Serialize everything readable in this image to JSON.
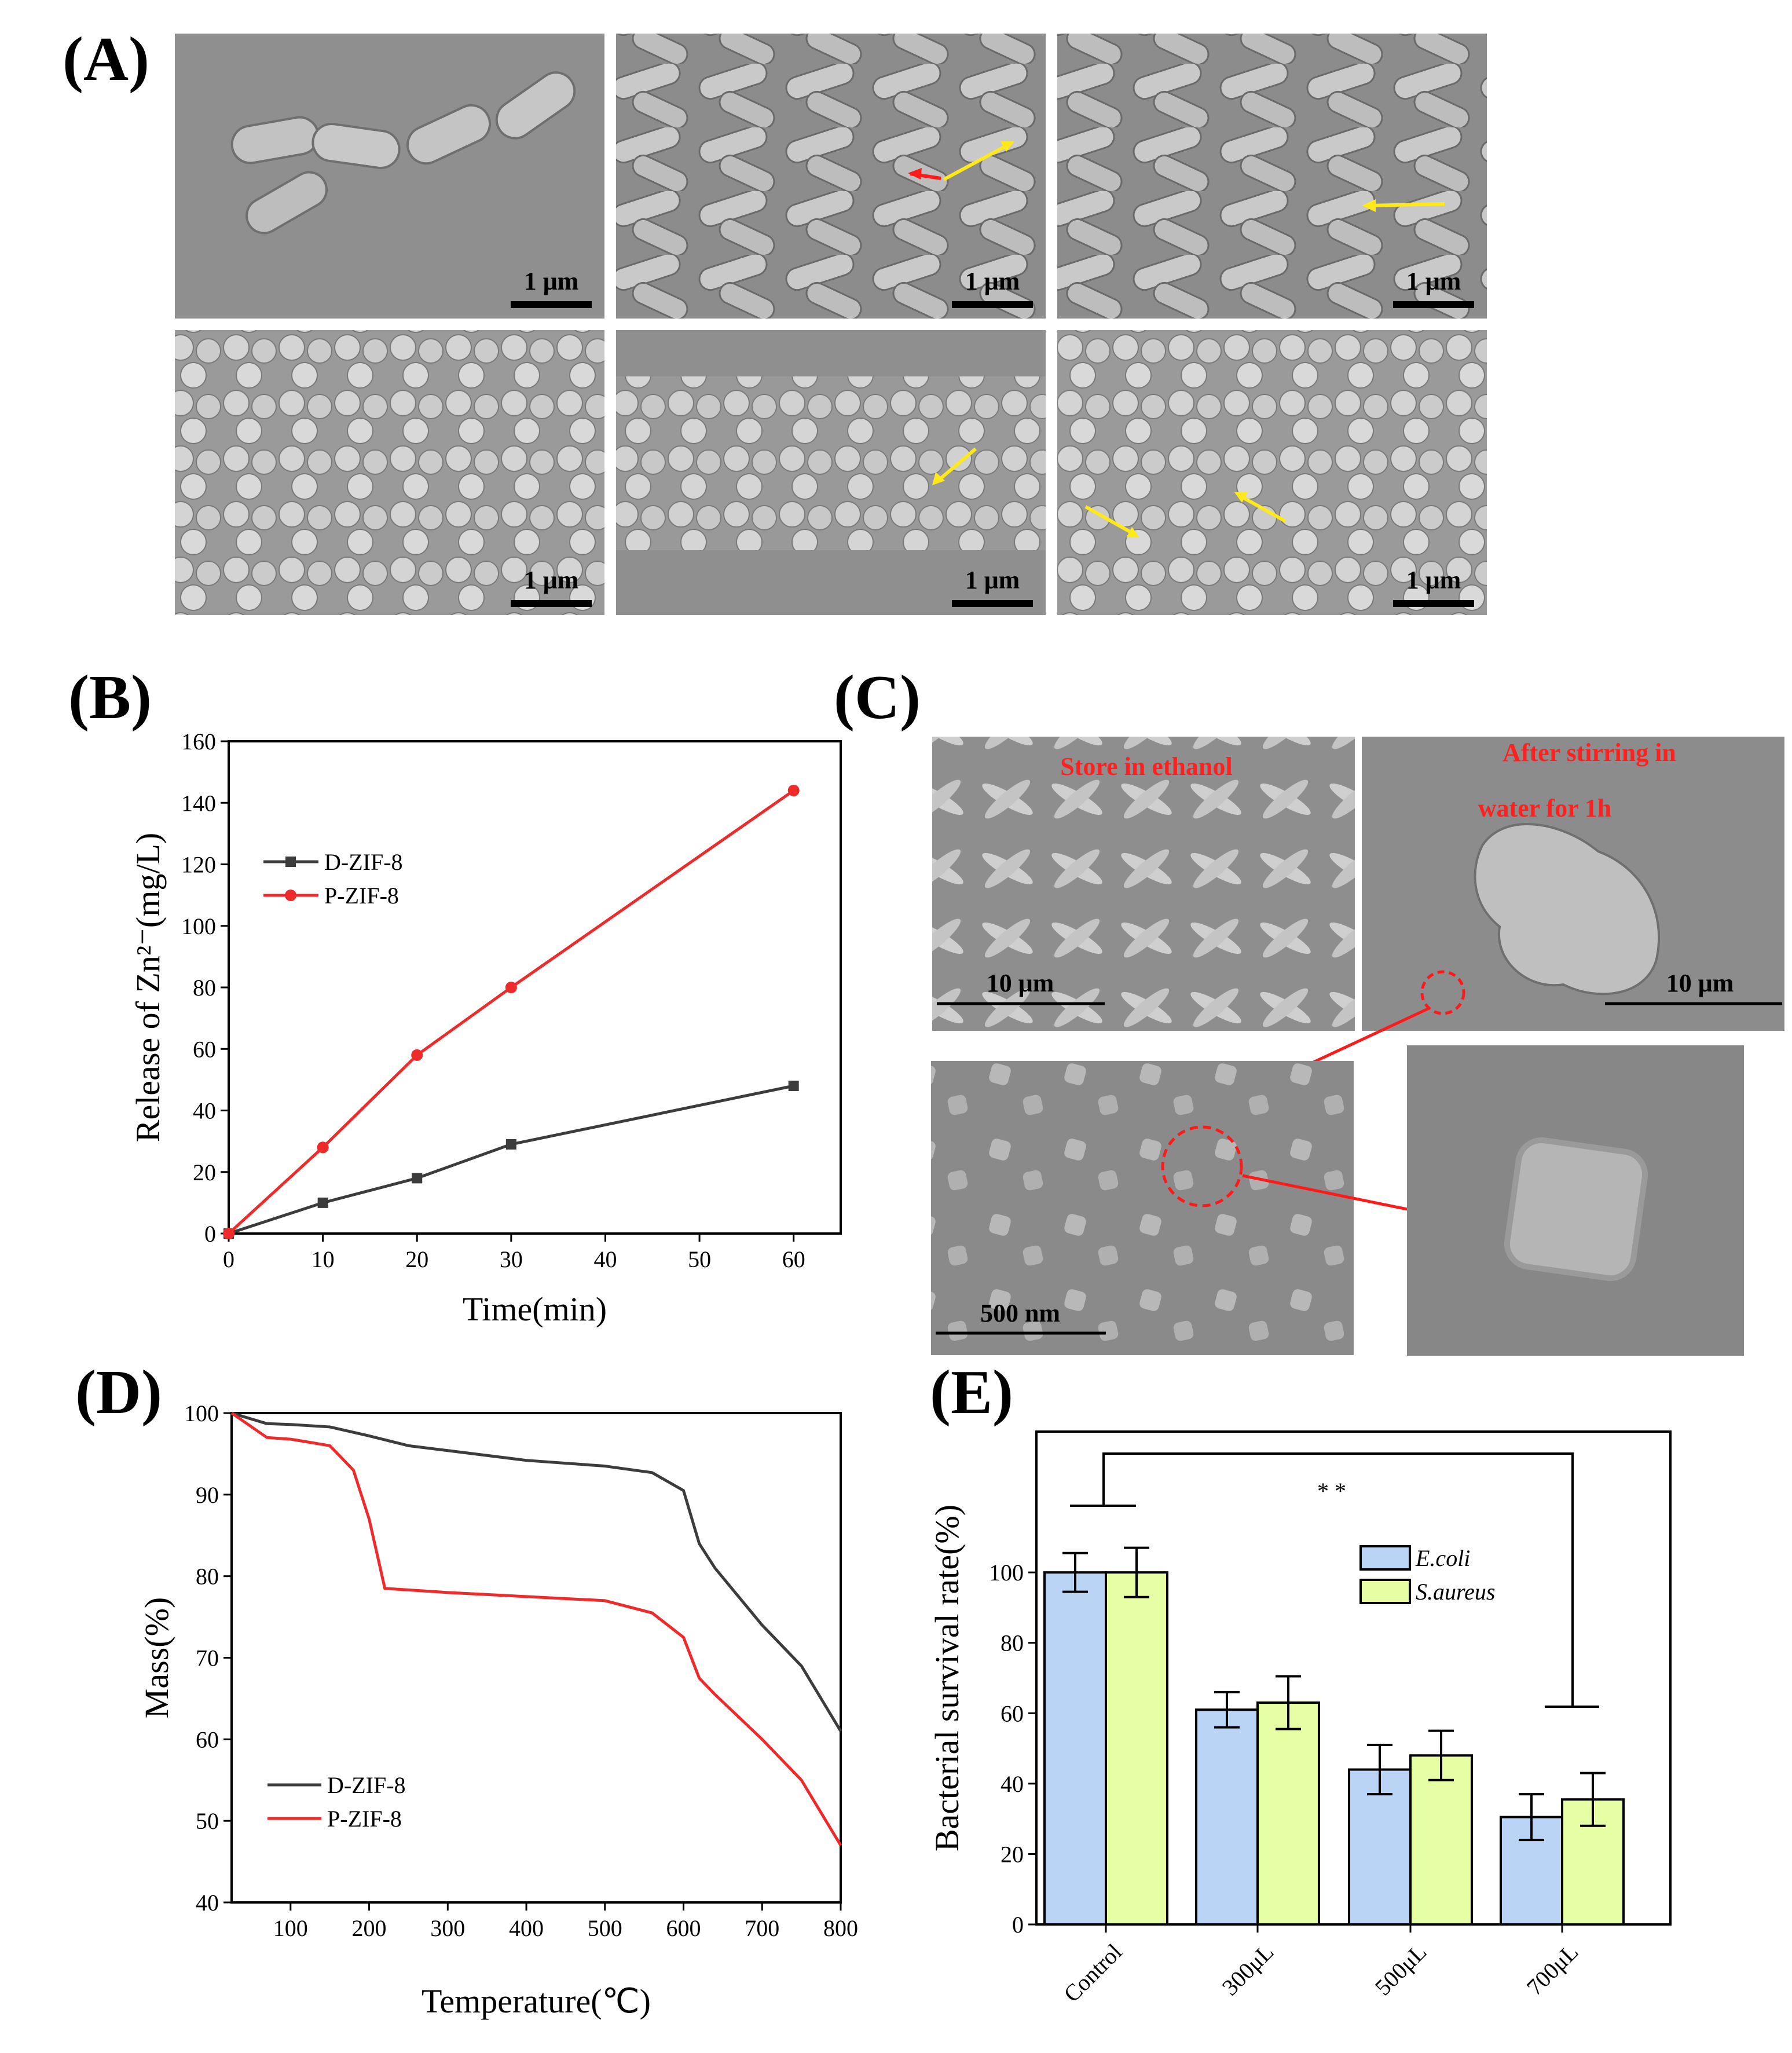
{
  "panel_labels": {
    "a": "(A)",
    "b": "(B)",
    "c": "(C)",
    "d": "(D)",
    "e": "(E)"
  },
  "sem_a": {
    "scale_labels": [
      "1 μm",
      "1 μm",
      "1 μm",
      "1 μm",
      "1 μm",
      "1 μm"
    ]
  },
  "sem_c": {
    "labels": {
      "left": "10 μm",
      "right": "10 μm",
      "bottom": "500 nm"
    },
    "overlays": {
      "store": "Store in ethanol",
      "after1": "After stirring in",
      "after2": "water for 1h"
    }
  },
  "colors": {
    "dark_series": "#3c3c3c",
    "red_series": "#ee2a2a",
    "ecoli": "#b9d4f5",
    "saureus": "#e6ffa5",
    "arrow_yellow": "#ffe91a",
    "arrow_red": "#ff1a1a"
  },
  "chart_data": [
    {
      "id": "B",
      "type": "line",
      "xlabel": "Time(min)",
      "ylabel": "Release of Zn²⁻(mg/L)",
      "xlim": [
        0,
        65
      ],
      "ylim": [
        0,
        160
      ],
      "xticks": [
        "0",
        "10",
        "20",
        "30",
        "40",
        "50",
        "60"
      ],
      "yticks": [
        "0",
        "20",
        "40",
        "60",
        "80",
        "100",
        "120",
        "140",
        "160"
      ],
      "legend_position": "upper-left",
      "series": [
        {
          "name": "D-ZIF-8",
          "x": [
            0,
            10,
            20,
            30,
            60
          ],
          "y": [
            0,
            10,
            18,
            29,
            48
          ]
        },
        {
          "name": "P-ZIF-8",
          "x": [
            0,
            10,
            20,
            30,
            60
          ],
          "y": [
            0,
            28,
            58,
            80,
            144
          ]
        }
      ]
    },
    {
      "id": "D",
      "type": "line",
      "xlabel": "Temperature(℃)",
      "ylabel": "Mass(%)",
      "xlim": [
        25,
        800
      ],
      "ylim": [
        40,
        100
      ],
      "xticks": [
        "100",
        "200",
        "300",
        "400",
        "500",
        "600",
        "700",
        "800"
      ],
      "yticks": [
        "40",
        "50",
        "60",
        "70",
        "80",
        "90",
        "100"
      ],
      "legend_position": "lower-left",
      "series": [
        {
          "name": "D-ZIF-8",
          "x": [
            25,
            70,
            100,
            150,
            200,
            250,
            300,
            400,
            500,
            560,
            600,
            620,
            640,
            700,
            750,
            800
          ],
          "y": [
            100,
            98.7,
            98.6,
            98.3,
            97.2,
            96.0,
            95.4,
            94.2,
            93.5,
            92.7,
            90.5,
            84.0,
            81.0,
            74.0,
            69.0,
            61.0
          ]
        },
        {
          "name": "P-ZIF-8",
          "x": [
            25,
            70,
            100,
            150,
            180,
            200,
            220,
            300,
            400,
            500,
            560,
            600,
            620,
            640,
            700,
            750,
            800
          ],
          "y": [
            100,
            97.0,
            96.8,
            96.0,
            93.0,
            87.0,
            78.5,
            78.0,
            77.5,
            77.0,
            75.5,
            72.5,
            67.5,
            65.5,
            60.0,
            55.0,
            47.0
          ]
        }
      ]
    },
    {
      "id": "E",
      "type": "bar",
      "ylabel": "Bacterial survival rate(%)",
      "ylim": [
        0,
        140
      ],
      "yticks": [
        "0",
        "20",
        "40",
        "60",
        "80",
        "100"
      ],
      "categories": [
        "Control",
        "300μL",
        "500μL",
        "700μL"
      ],
      "legend_position": "top-right",
      "significance": "* *",
      "series": [
        {
          "name": "E.coli",
          "values": [
            100,
            61,
            44,
            30.5
          ],
          "errors": [
            5.5,
            5.0,
            7.0,
            6.5
          ]
        },
        {
          "name": "S.aureus",
          "values": [
            100,
            63,
            48,
            35.5
          ],
          "errors": [
            7.0,
            7.5,
            7.0,
            7.5
          ]
        }
      ]
    }
  ]
}
